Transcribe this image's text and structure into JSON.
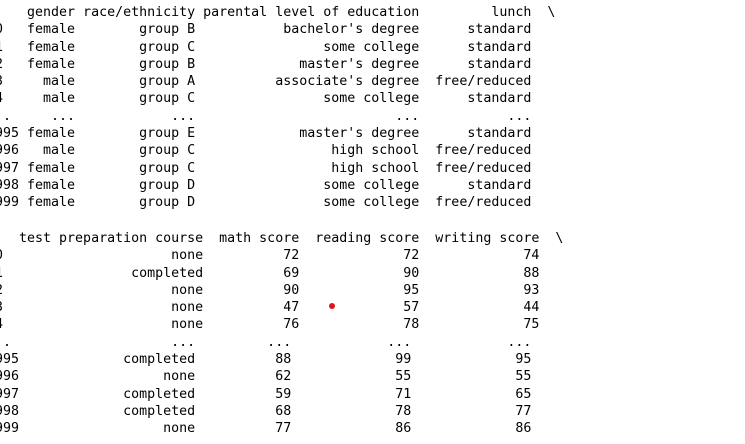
{
  "output": {
    "block1": {
      "lines": [
        "    gender race/ethnicity parental level of education         lunch  \\",
        "0   female        group B           bachelor's degree      standard   ",
        "1   female        group C                some college      standard   ",
        "2   female        group B             master's degree      standard   ",
        "3     male        group A          associate's degree  free/reduced   ",
        "4     male        group C                some college      standard   ",
        "..     ...            ...                         ...           ...   ",
        "995 female        group E             master's degree      standard   ",
        "996   male        group C                 high school  free/reduced   ",
        "997 female        group C                 high school  free/reduced   ",
        "998 female        group D                some college      standard   ",
        "999 female        group D                some college  free/reduced   "
      ]
    },
    "block2": {
      "lines": [
        "   test preparation course  math score  reading score  writing score  \\",
        "0                     none          72             72             74   ",
        "1                completed          69             90             88   ",
        "2                     none          90             95             93   ",
        "3                     none          47             57             44   ",
        "4                     none          76             78             75   ",
        "..                    ...         ...            ...            ...   ",
        "995             completed          88             99             95   ",
        "996                  none          62             55             55   ",
        "997             completed          59             71             65   ",
        "998             completed          68             78             77   ",
        "999                  none          77             86             86   "
      ]
    }
  },
  "marker_color": "#e0101c"
}
